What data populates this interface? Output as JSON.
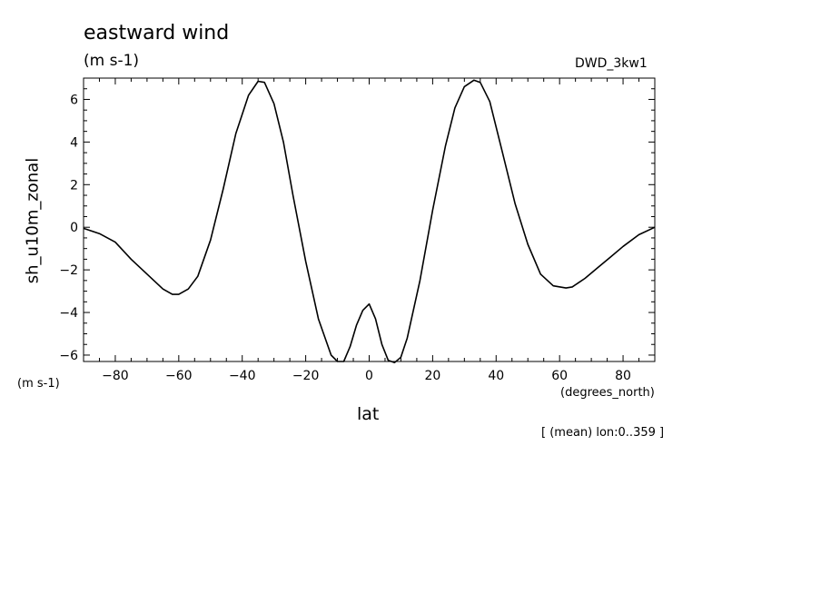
{
  "chart_data": {
    "type": "line",
    "title": "eastward wind",
    "units": "(m s-1)",
    "model": "DWD_3kw1",
    "ylabel": "sh_u10m_zonal",
    "ylabel_units": "(m s-1)",
    "xlabel": "lat",
    "xlabel_units": "(degrees_north)",
    "annotation": "[ (mean) lon:0..359 ]",
    "xlim": [
      -90,
      90
    ],
    "ylim": [
      -6.3,
      7.0
    ],
    "x_ticks": [
      -80,
      -60,
      -40,
      -20,
      0,
      20,
      40,
      60,
      80
    ],
    "x_tick_labels": [
      "−80",
      "−60",
      "−40",
      "−20",
      "0",
      "20",
      "40",
      "60",
      "80"
    ],
    "y_ticks": [
      -6,
      -4,
      -2,
      0,
      2,
      4,
      6
    ],
    "y_tick_labels": [
      "−6",
      "−4",
      "−2",
      "0",
      "2",
      "4",
      "6"
    ],
    "grid": false,
    "line_color": "#000000",
    "series": [
      {
        "x": [
          -90,
          -85,
          -80,
          -75,
          -70,
          -65,
          -62,
          -60,
          -57,
          -54,
          -50,
          -46,
          -42,
          -38,
          -35,
          -33,
          -30,
          -27,
          -24,
          -20,
          -16,
          -12,
          -10,
          -8,
          -6,
          -4,
          -2,
          0,
          2,
          4,
          6,
          8,
          10,
          12,
          16,
          20,
          24,
          27,
          30,
          33,
          35,
          38,
          42,
          46,
          50,
          54,
          58,
          62,
          64,
          68,
          72,
          76,
          80,
          85,
          90
        ],
        "y": [
          -0.05,
          -0.3,
          -0.7,
          -1.5,
          -2.2,
          -2.9,
          -3.15,
          -3.15,
          -2.9,
          -2.3,
          -0.6,
          1.8,
          4.4,
          6.2,
          6.85,
          6.8,
          5.8,
          4.0,
          1.5,
          -1.6,
          -4.3,
          -6.0,
          -6.3,
          -6.3,
          -5.6,
          -4.6,
          -3.9,
          -3.6,
          -4.3,
          -5.5,
          -6.25,
          -6.35,
          -6.1,
          -5.2,
          -2.5,
          0.8,
          3.8,
          5.6,
          6.6,
          6.9,
          6.8,
          5.9,
          3.5,
          1.1,
          -0.8,
          -2.2,
          -2.75,
          -2.85,
          -2.8,
          -2.4,
          -1.9,
          -1.4,
          -0.9,
          -0.35,
          0.0
        ]
      }
    ]
  }
}
